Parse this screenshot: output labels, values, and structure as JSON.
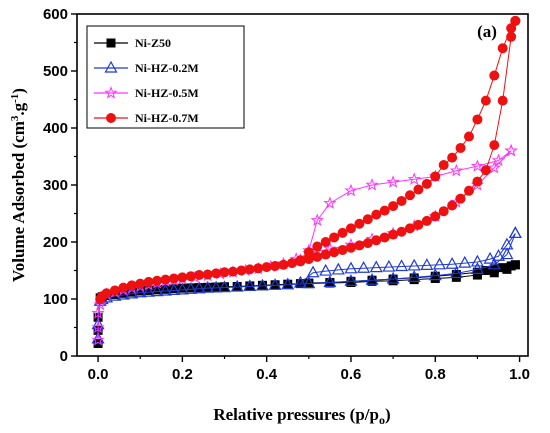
{
  "chart_data": {
    "type": "scatter",
    "panel_label": "(a)",
    "xlabel": {
      "main": "Relative pressures (p/p",
      "sub": "o",
      "tail": ")"
    },
    "ylabel": {
      "pre": "Volume Adsorbed (cm",
      "sup1": "3",
      "mid": ".g",
      "sup2": "-1",
      "tail": ")"
    },
    "xlim": [
      -0.05,
      1.02
    ],
    "ylim": [
      0,
      600
    ],
    "xticks": [
      0.0,
      0.2,
      0.4,
      0.6,
      0.8,
      1.0
    ],
    "xtick_labels": [
      "0.0",
      "0.2",
      "0.4",
      "0.6",
      "0.8",
      "1.0"
    ],
    "yticks": [
      0,
      100,
      200,
      300,
      400,
      500,
      600
    ],
    "ytick_labels": [
      "0",
      "100",
      "200",
      "300",
      "400",
      "500",
      "600"
    ],
    "grid": false,
    "legend_position": "top-left",
    "series": [
      {
        "name": "Ni-Z50",
        "color": "#000000",
        "marker": "square",
        "adsorption": [
          [
            0.0,
            22
          ],
          [
            0.0,
            45
          ],
          [
            0.0,
            68
          ],
          [
            0.005,
            102
          ],
          [
            0.01,
            104
          ],
          [
            0.02,
            106
          ],
          [
            0.04,
            108
          ],
          [
            0.06,
            110
          ],
          [
            0.08,
            112
          ],
          [
            0.1,
            114
          ],
          [
            0.12,
            115
          ],
          [
            0.14,
            116
          ],
          [
            0.16,
            117
          ],
          [
            0.18,
            118
          ],
          [
            0.2,
            119
          ],
          [
            0.22,
            119.5
          ],
          [
            0.24,
            120
          ],
          [
            0.26,
            120.5
          ],
          [
            0.28,
            121
          ],
          [
            0.3,
            121.5
          ],
          [
            0.33,
            122
          ],
          [
            0.36,
            123
          ],
          [
            0.39,
            124
          ],
          [
            0.42,
            125
          ],
          [
            0.45,
            126
          ],
          [
            0.5,
            127
          ],
          [
            0.55,
            128
          ],
          [
            0.6,
            129
          ],
          [
            0.65,
            131
          ],
          [
            0.7,
            132
          ],
          [
            0.75,
            134
          ],
          [
            0.8,
            136
          ],
          [
            0.85,
            138
          ],
          [
            0.9,
            142
          ],
          [
            0.94,
            146
          ],
          [
            0.97,
            152
          ],
          [
            0.99,
            160
          ]
        ],
        "desorption": [
          [
            0.99,
            160
          ],
          [
            0.98,
            158
          ],
          [
            0.96,
            155
          ],
          [
            0.94,
            153
          ],
          [
            0.92,
            150
          ],
          [
            0.9,
            147
          ],
          [
            0.85,
            143
          ],
          [
            0.8,
            140
          ],
          [
            0.75,
            137
          ],
          [
            0.7,
            135
          ],
          [
            0.65,
            133
          ],
          [
            0.6,
            131
          ],
          [
            0.55,
            129
          ],
          [
            0.5,
            128
          ],
          [
            0.48,
            127
          ]
        ]
      },
      {
        "name": "Ni-HZ-0.2M",
        "color": "#1f3bd6",
        "marker": "triangle",
        "adsorption": [
          [
            0.0,
            30
          ],
          [
            0.0,
            55
          ],
          [
            0.005,
            96
          ],
          [
            0.01,
            99
          ],
          [
            0.02,
            102
          ],
          [
            0.04,
            105
          ],
          [
            0.06,
            107
          ],
          [
            0.08,
            109
          ],
          [
            0.1,
            111
          ],
          [
            0.12,
            112
          ],
          [
            0.14,
            113
          ],
          [
            0.16,
            114
          ],
          [
            0.18,
            115
          ],
          [
            0.2,
            116
          ],
          [
            0.22,
            117
          ],
          [
            0.24,
            118
          ],
          [
            0.26,
            119
          ],
          [
            0.28,
            119.5
          ],
          [
            0.3,
            120
          ],
          [
            0.33,
            121
          ],
          [
            0.36,
            122
          ],
          [
            0.39,
            123
          ],
          [
            0.42,
            124
          ],
          [
            0.45,
            125
          ],
          [
            0.5,
            127
          ],
          [
            0.55,
            129
          ],
          [
            0.6,
            131
          ],
          [
            0.65,
            133
          ],
          [
            0.7,
            135
          ],
          [
            0.75,
            138
          ],
          [
            0.8,
            141
          ],
          [
            0.85,
            145
          ],
          [
            0.9,
            152
          ],
          [
            0.94,
            160
          ],
          [
            0.97,
            178
          ],
          [
            0.99,
            215
          ]
        ],
        "desorption": [
          [
            0.99,
            215
          ],
          [
            0.97,
            195
          ],
          [
            0.95,
            175
          ],
          [
            0.93,
            170
          ],
          [
            0.9,
            165
          ],
          [
            0.87,
            163
          ],
          [
            0.84,
            161
          ],
          [
            0.81,
            160
          ],
          [
            0.78,
            159
          ],
          [
            0.75,
            158
          ],
          [
            0.72,
            157
          ],
          [
            0.69,
            156
          ],
          [
            0.66,
            155
          ],
          [
            0.63,
            154
          ],
          [
            0.6,
            153
          ],
          [
            0.57,
            151
          ],
          [
            0.54,
            149
          ],
          [
            0.51,
            146
          ],
          [
            0.48,
            128
          ]
        ]
      },
      {
        "name": "Ni-HZ-0.5M",
        "color": "#ff33ff",
        "marker": "star",
        "adsorption": [
          [
            0.0,
            28
          ],
          [
            0.0,
            50
          ],
          [
            0.0,
            75
          ],
          [
            0.005,
            90
          ],
          [
            0.02,
            108
          ],
          [
            0.04,
            112
          ],
          [
            0.06,
            116
          ],
          [
            0.08,
            119
          ],
          [
            0.1,
            122
          ],
          [
            0.12,
            125
          ],
          [
            0.14,
            128
          ],
          [
            0.16,
            131
          ],
          [
            0.18,
            133
          ],
          [
            0.2,
            135
          ],
          [
            0.23,
            138
          ],
          [
            0.26,
            141
          ],
          [
            0.29,
            144
          ],
          [
            0.32,
            147
          ],
          [
            0.35,
            150
          ],
          [
            0.38,
            153
          ],
          [
            0.41,
            157
          ],
          [
            0.44,
            162
          ],
          [
            0.47,
            170
          ],
          [
            0.5,
            180
          ],
          [
            0.55,
            188
          ],
          [
            0.6,
            195
          ],
          [
            0.65,
            205
          ],
          [
            0.7,
            215
          ],
          [
            0.75,
            228
          ],
          [
            0.8,
            245
          ],
          [
            0.85,
            270
          ],
          [
            0.9,
            300
          ],
          [
            0.94,
            330
          ],
          [
            0.98,
            360
          ]
        ],
        "desorption": [
          [
            0.98,
            360
          ],
          [
            0.95,
            343
          ],
          [
            0.9,
            333
          ],
          [
            0.85,
            325
          ],
          [
            0.8,
            315
          ],
          [
            0.75,
            310
          ],
          [
            0.7,
            305
          ],
          [
            0.65,
            300
          ],
          [
            0.6,
            290
          ],
          [
            0.55,
            268
          ],
          [
            0.52,
            238
          ],
          [
            0.5,
            185
          ],
          [
            0.48,
            168
          ]
        ]
      },
      {
        "name": "Ni-HZ-0.7M",
        "color": "#ee1111",
        "marker": "circle",
        "adsorption": [
          [
            0.005,
            100
          ],
          [
            0.01,
            105
          ],
          [
            0.02,
            110
          ],
          [
            0.04,
            115
          ],
          [
            0.06,
            120
          ],
          [
            0.08,
            124
          ],
          [
            0.1,
            127
          ],
          [
            0.12,
            130
          ],
          [
            0.14,
            132
          ],
          [
            0.16,
            134
          ],
          [
            0.18,
            136
          ],
          [
            0.2,
            138
          ],
          [
            0.22,
            140
          ],
          [
            0.24,
            142
          ],
          [
            0.26,
            143
          ],
          [
            0.28,
            145
          ],
          [
            0.3,
            147
          ],
          [
            0.32,
            148
          ],
          [
            0.34,
            150
          ],
          [
            0.36,
            152
          ],
          [
            0.38,
            154
          ],
          [
            0.4,
            156
          ],
          [
            0.42,
            158
          ],
          [
            0.44,
            160
          ],
          [
            0.46,
            163
          ],
          [
            0.48,
            166
          ],
          [
            0.5,
            170
          ],
          [
            0.52,
            174
          ],
          [
            0.54,
            178
          ],
          [
            0.56,
            182
          ],
          [
            0.58,
            186
          ],
          [
            0.6,
            190
          ],
          [
            0.62,
            194
          ],
          [
            0.64,
            198
          ],
          [
            0.66,
            203
          ],
          [
            0.68,
            208
          ],
          [
            0.7,
            213
          ],
          [
            0.72,
            218
          ],
          [
            0.74,
            224
          ],
          [
            0.76,
            230
          ],
          [
            0.78,
            237
          ],
          [
            0.8,
            245
          ],
          [
            0.82,
            254
          ],
          [
            0.84,
            264
          ],
          [
            0.86,
            276
          ],
          [
            0.88,
            290
          ],
          [
            0.9,
            306
          ],
          [
            0.92,
            326
          ],
          [
            0.94,
            370
          ],
          [
            0.96,
            448
          ],
          [
            0.98,
            560
          ],
          [
            0.99,
            588
          ]
        ],
        "desorption": [
          [
            0.99,
            588
          ],
          [
            0.98,
            575
          ],
          [
            0.96,
            540
          ],
          [
            0.94,
            492
          ],
          [
            0.92,
            448
          ],
          [
            0.9,
            415
          ],
          [
            0.88,
            385
          ],
          [
            0.86,
            365
          ],
          [
            0.84,
            348
          ],
          [
            0.82,
            335
          ],
          [
            0.8,
            315
          ],
          [
            0.78,
            302
          ],
          [
            0.76,
            292
          ],
          [
            0.74,
            282
          ],
          [
            0.72,
            272
          ],
          [
            0.7,
            263
          ],
          [
            0.68,
            255
          ],
          [
            0.66,
            248
          ],
          [
            0.64,
            240
          ],
          [
            0.62,
            232
          ],
          [
            0.6,
            224
          ],
          [
            0.58,
            216
          ],
          [
            0.56,
            208
          ],
          [
            0.54,
            200
          ],
          [
            0.52,
            192
          ],
          [
            0.5,
            182
          ],
          [
            0.48,
            168
          ]
        ]
      }
    ]
  }
}
